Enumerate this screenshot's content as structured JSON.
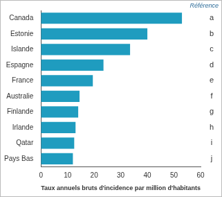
{
  "chart_data": {
    "type": "bar",
    "orientation": "horizontal",
    "categories": [
      "Canada",
      "Estonie",
      "Islande",
      "Espagne",
      "France",
      "Australie",
      "Finlande",
      "Irlande",
      "Qatar",
      "Pays Bas"
    ],
    "values": [
      53,
      40,
      33.5,
      23.5,
      19.5,
      14.5,
      14,
      13,
      12.5,
      12
    ],
    "color": "#1f9cbf",
    "x_label": "Taux annuels bruts d'incidence par million d'habitants",
    "xlim": [
      0,
      60
    ],
    "xticks": [
      0,
      10,
      20,
      30,
      40,
      50,
      60
    ],
    "grid": false,
    "annotations": {
      "title": "Référence",
      "labels": [
        "a",
        "b",
        "c",
        "d",
        "e",
        "f",
        "g",
        "h",
        "i",
        "j"
      ]
    }
  }
}
